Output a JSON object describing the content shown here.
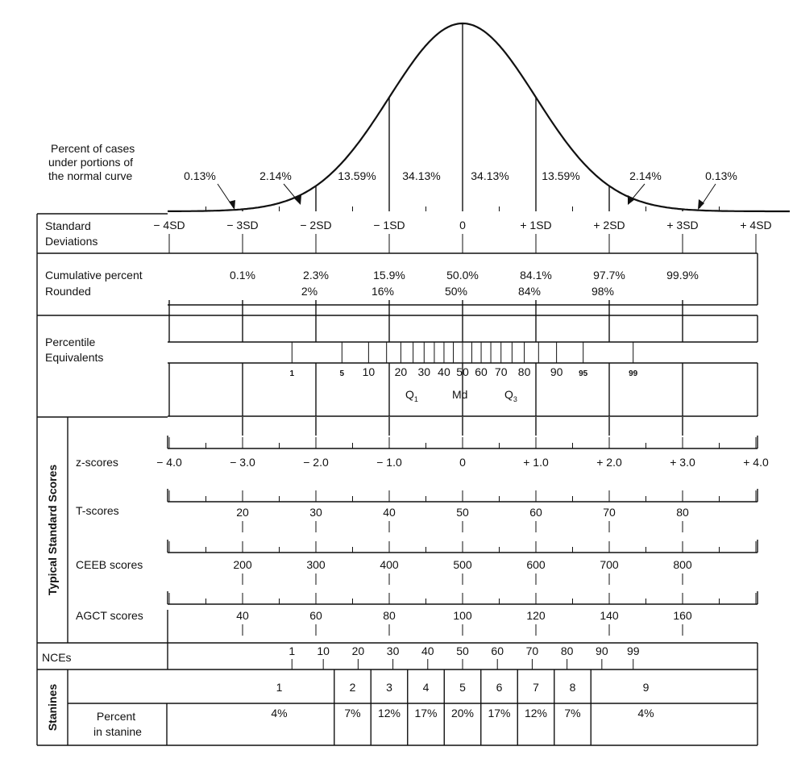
{
  "curve": {
    "caption_lines": [
      "Percent of cases",
      "under portions of",
      "the normal curve"
    ],
    "percents": [
      "0.13%",
      "2.14%",
      "13.59%",
      "34.13%",
      "34.13%",
      "13.59%",
      "2.14%",
      "0.13%"
    ]
  },
  "sd": {
    "label_lines": [
      "Standard",
      "Deviations"
    ],
    "ticks": [
      "− 4SD",
      "− 3SD",
      "− 2SD",
      "− 1SD",
      "0",
      "+ 1SD",
      "+ 2SD",
      "+ 3SD",
      "+ 4SD"
    ]
  },
  "cumulative": {
    "label_lines": [
      "Cumulative percent",
      "Rounded"
    ],
    "values": [
      "0.1%",
      "2.3%",
      "15.9%",
      "50.0%",
      "84.1%",
      "97.7%",
      "99.9%"
    ],
    "rounded": [
      "2%",
      "16%",
      "50%",
      "84%",
      "98%"
    ]
  },
  "percentile": {
    "label_lines": [
      "Percentile",
      "Equivalents"
    ],
    "ticks": [
      1,
      5,
      10,
      20,
      30,
      40,
      50,
      60,
      70,
      80,
      90,
      95,
      99
    ],
    "tick_labels": [
      "1",
      "5",
      "10",
      "20",
      "30",
      "40",
      "50",
      "60",
      "70",
      "80",
      "90",
      "95",
      "99"
    ],
    "q1": "Q",
    "q1_sub": "1",
    "md": "Md",
    "q3": "Q",
    "q3_sub": "3"
  },
  "typical": {
    "side_label": "Typical Standard Scores",
    "z_label": "z-scores",
    "z_values": [
      "− 4.0",
      "− 3.0",
      "− 2.0",
      "− 1.0",
      "0",
      "+ 1.0",
      "+ 2.0",
      "+ 3.0",
      "+ 4.0"
    ],
    "t_label": "T-scores",
    "t_values": [
      "20",
      "30",
      "40",
      "50",
      "60",
      "70",
      "80"
    ],
    "ceeb_label": "CEEB scores",
    "ceeb_values": [
      "200",
      "300",
      "400",
      "500",
      "600",
      "700",
      "800"
    ],
    "agct_label": "AGCT scores",
    "agct_values": [
      "40",
      "60",
      "80",
      "100",
      "120",
      "140",
      "160"
    ]
  },
  "nce": {
    "label": "NCEs",
    "ticks": [
      1,
      10,
      20,
      30,
      40,
      50,
      60,
      70,
      80,
      90,
      99
    ],
    "values": [
      "1",
      "10",
      "20",
      "30",
      "40",
      "50",
      "60",
      "70",
      "80",
      "90",
      "99"
    ]
  },
  "stanines": {
    "side_label": "Stanines",
    "numbers": [
      "1",
      "2",
      "3",
      "4",
      "5",
      "6",
      "7",
      "8",
      "9"
    ],
    "percent_label_lines": [
      "Percent",
      "in stanine"
    ],
    "percents": [
      "4%",
      "7%",
      "12%",
      "17%",
      "20%",
      "17%",
      "12%",
      "7%",
      "4%"
    ]
  }
}
